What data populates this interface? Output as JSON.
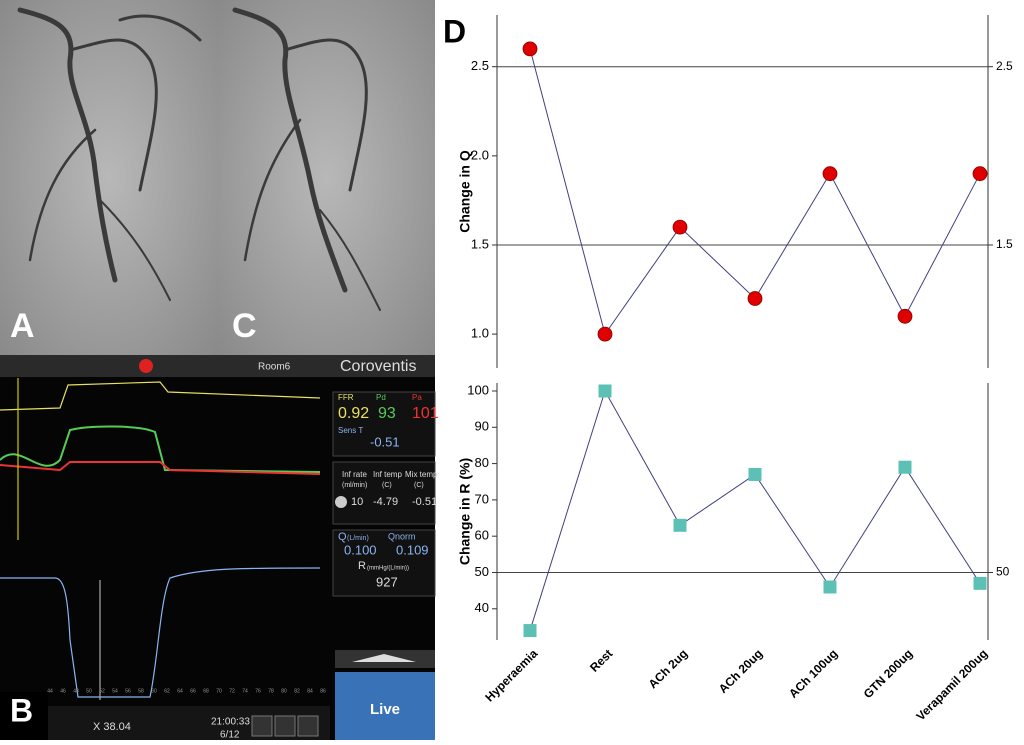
{
  "panels": {
    "a": "A",
    "b": "B",
    "c": "C",
    "d": "D"
  },
  "monitor": {
    "room": "Room6",
    "brand": "Coroventis",
    "ffr_label": "FFR",
    "pd_label": "Pd",
    "pa_label": "Pa",
    "ffr": "0.92",
    "pd": "93",
    "pa": "101",
    "sens_label": "Sens T",
    "sens": "-0.51",
    "inf_rate_label": "Inf rate",
    "inf_rate_unit": "(ml/min)",
    "inf_temp_label": "Inf temp",
    "inf_temp_unit": "(C)",
    "mix_temp_label": "Mix temp",
    "mix_temp_unit": "(C)",
    "inf_rate": "10",
    "inf_temp": "-4.79",
    "mix_temp": "-0.51",
    "q_label": "Q",
    "q_unit": "(L/min)",
    "qnorm_label": "Qnorm",
    "q": "0.100",
    "qnorm": "0.109",
    "r_label": "R",
    "r_unit": "(mmHg/(L/min))",
    "r": "927",
    "live": "Live",
    "cursor": "X 38.04",
    "time": "21:00:33",
    "page": "6/12",
    "scale": [
      "44",
      "46",
      "48",
      "50",
      "52",
      "54",
      "56",
      "58",
      "60",
      "62",
      "64",
      "66",
      "68",
      "70",
      "72",
      "74",
      "76",
      "78",
      "80",
      "82",
      "84",
      "86"
    ]
  },
  "chart_data": [
    {
      "type": "line",
      "y_label": "Change in Q",
      "values": [
        2.6,
        1.0,
        1.6,
        1.2,
        1.9,
        1.1,
        1.9
      ],
      "color": "#e00000",
      "line_color": "#404080",
      "marker": "circle",
      "ylim": [
        0.81,
        2.79
      ],
      "yticks": [
        {
          "value": 1.0,
          "label": "1.0"
        },
        {
          "value": 1.5,
          "label": "1.5"
        },
        {
          "value": 2.0,
          "label": "2.0"
        },
        {
          "value": 2.5,
          "label": "2.5"
        }
      ],
      "y2lim": [
        0.81,
        2.79
      ],
      "y2ticks": [
        {
          "value": 1.5,
          "label": "1.5"
        },
        {
          "value": 2.5,
          "label": "2.5"
        }
      ],
      "grid": "y2"
    },
    {
      "type": "line",
      "y_label": "Change in R (%)",
      "categories": [
        "Hyperaemia",
        "Rest",
        "ACh 2ug",
        "ACh 20ug",
        "ACh 100ug",
        "GTN 200ug",
        "Verapamil 200ug"
      ],
      "values": [
        34,
        100,
        63,
        77,
        46,
        79,
        47
      ],
      "color": "#5cc0b5",
      "line_color": "#404080",
      "marker": "square",
      "ylim": [
        31.4,
        102.2
      ],
      "yticks": [
        40,
        50,
        60,
        70,
        80,
        90,
        100
      ],
      "y2lim": [
        31.4,
        102.2
      ],
      "y2ticks": [
        50
      ],
      "grid": "y2"
    }
  ]
}
